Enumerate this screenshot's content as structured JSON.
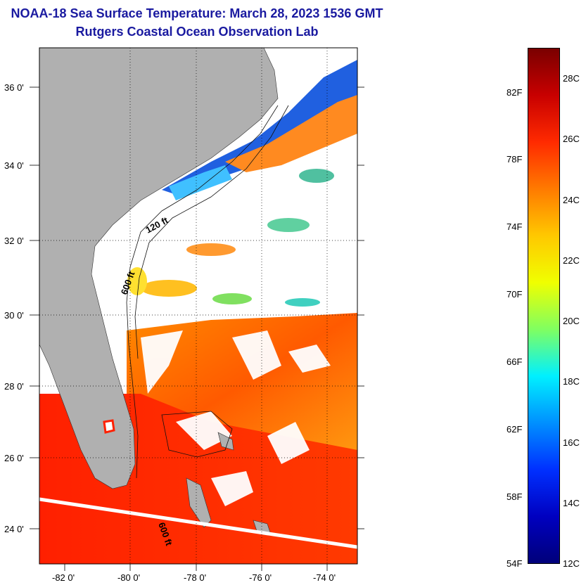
{
  "header": {
    "title": "NOAA-18 Sea Surface Temperature:  March 28, 2023 1536 GMT",
    "subtitle": "Rutgers Coastal Ocean Observation Lab"
  },
  "axes": {
    "lat_labels": [
      "36 0'",
      "34 0'",
      "32 0'",
      "30 0'",
      "28 0'",
      "26 0'",
      "24 0'"
    ],
    "lon_labels": [
      "-82 0'",
      "-80 0'",
      "-78 0'",
      "-76 0'",
      "-74 0'"
    ]
  },
  "contours": [
    {
      "label": "120 ft"
    },
    {
      "label": "600 ft"
    },
    {
      "label": "600 ft"
    }
  ],
  "colorbar": {
    "f_labels": [
      "82F",
      "78F",
      "74F",
      "70F",
      "66F",
      "62F",
      "58F",
      "54F"
    ],
    "c_labels": [
      "28C",
      "26C",
      "24C",
      "22C",
      "20C",
      "18C",
      "16C",
      "14C",
      "12C"
    ],
    "colors": [
      "#7a0000",
      "#c80000",
      "#ff2a00",
      "#ff7a00",
      "#ffc800",
      "#f0ff00",
      "#80ff60",
      "#00f0ff",
      "#0090ff",
      "#0030ff",
      "#0000c0",
      "#00007a"
    ]
  },
  "colors": {
    "land": "#b0b0b0",
    "title": "#1a1aa0",
    "cloud": "#ffffff"
  }
}
